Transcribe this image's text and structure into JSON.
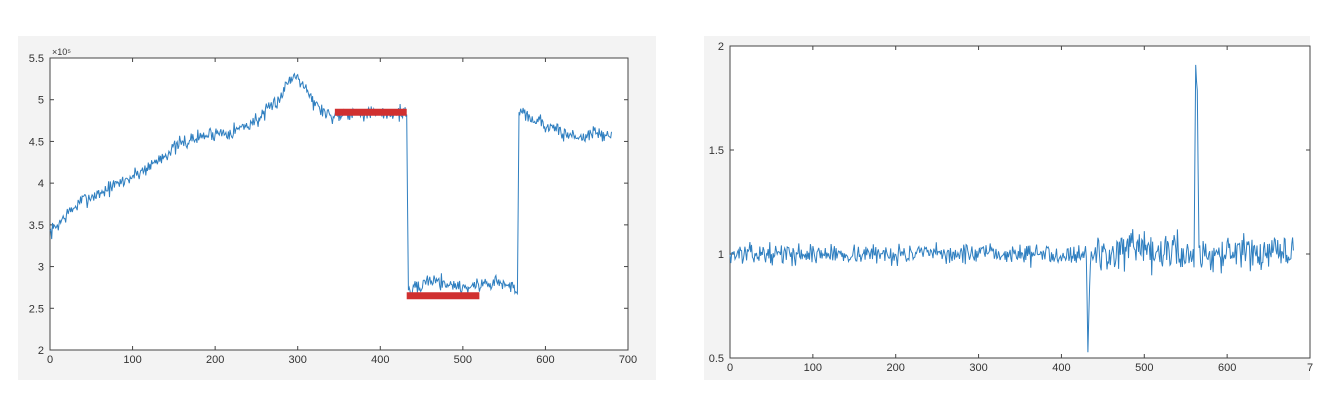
{
  "chart_data": [
    {
      "type": "line",
      "title": "",
      "xlabel": "",
      "ylabel": "",
      "y_exponent_label": "×10⁵",
      "xlim": [
        0,
        700
      ],
      "ylim": [
        2,
        5.5
      ],
      "xticks": [
        "0",
        "100",
        "200",
        "300",
        "400",
        "500",
        "600",
        "700"
      ],
      "yticks": [
        "2",
        "2.5",
        "3",
        "3.5",
        "4",
        "4.5",
        "5",
        "5.5"
      ],
      "grid": false,
      "series": [
        {
          "color": "#2f7fc0",
          "x": [
            0,
            20,
            40,
            60,
            80,
            100,
            120,
            140,
            160,
            180,
            200,
            220,
            240,
            260,
            280,
            290,
            300,
            310,
            320,
            340,
            360,
            380,
            400,
            420,
            432,
            434,
            440,
            460,
            480,
            500,
            520,
            540,
            560,
            566,
            568,
            580,
            600,
            620,
            640,
            660,
            680
          ],
          "values": [
            3.4,
            3.62,
            3.8,
            3.88,
            3.98,
            4.08,
            4.2,
            4.35,
            4.48,
            4.55,
            4.6,
            4.62,
            4.7,
            4.82,
            5.05,
            5.25,
            5.3,
            5.15,
            4.95,
            4.8,
            4.85,
            4.85,
            4.82,
            4.85,
            4.85,
            2.7,
            2.7,
            2.85,
            2.8,
            2.75,
            2.78,
            2.82,
            2.75,
            2.7,
            4.9,
            4.8,
            4.7,
            4.6,
            4.55,
            4.6,
            4.55
          ],
          "noise": 0.07
        },
        {
          "color": "#d03030",
          "segments": [
            {
              "x": [
                345,
                432
              ],
              "y": [
                4.85,
                4.85
              ]
            },
            {
              "x": [
                432,
                520
              ],
              "y": [
                2.65,
                2.65
              ]
            }
          ]
        }
      ]
    },
    {
      "type": "line",
      "title": "",
      "xlabel": "",
      "ylabel": "",
      "xlim": [
        0,
        700
      ],
      "ylim": [
        0.5,
        2
      ],
      "xticks": [
        "0",
        "100",
        "200",
        "300",
        "400",
        "500",
        "600",
        "7"
      ],
      "yticks": [
        "0.5",
        "1",
        "1.5",
        "2"
      ],
      "grid": false,
      "series": [
        {
          "color": "#2f7fc0",
          "x": [
            0,
            100,
            200,
            300,
            400,
            420,
            430,
            432,
            434,
            436,
            440,
            460,
            480,
            500,
            520,
            540,
            550,
            560,
            562,
            564,
            566,
            568,
            580,
            600,
            620,
            640,
            660,
            680
          ],
          "values": [
            1.0,
            1.0,
            1.0,
            1.0,
            1.0,
            1.0,
            1.0,
            0.55,
            0.85,
            1.0,
            1.0,
            1.0,
            1.02,
            1.0,
            1.0,
            1.02,
            1.0,
            1.0,
            1.85,
            1.8,
            1.05,
            1.0,
            1.0,
            1.0,
            1.0,
            1.0,
            1.0,
            1.0
          ],
          "noise": 0.035,
          "noise_after": 440,
          "noise_after_scale": 0.07
        }
      ]
    }
  ]
}
